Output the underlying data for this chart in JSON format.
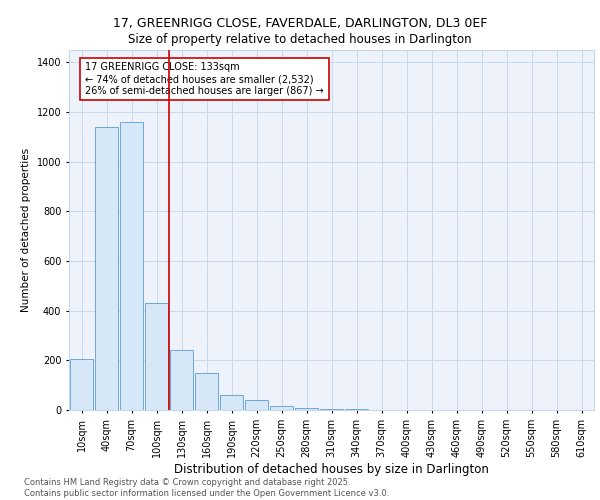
{
  "title_line1": "17, GREENRIGG CLOSE, FAVERDALE, DARLINGTON, DL3 0EF",
  "title_line2": "Size of property relative to detached houses in Darlington",
  "xlabel": "Distribution of detached houses by size in Darlington",
  "ylabel": "Number of detached properties",
  "bar_labels": [
    "10sqm",
    "40sqm",
    "70sqm",
    "100sqm",
    "130sqm",
    "160sqm",
    "190sqm",
    "220sqm",
    "250sqm",
    "280sqm",
    "310sqm",
    "340sqm",
    "370sqm",
    "400sqm",
    "430sqm",
    "460sqm",
    "490sqm",
    "520sqm",
    "550sqm",
    "580sqm",
    "610sqm"
  ],
  "bar_values": [
    205,
    1140,
    1160,
    430,
    240,
    150,
    60,
    40,
    15,
    10,
    5,
    5,
    0,
    0,
    0,
    2,
    0,
    0,
    0,
    0,
    0
  ],
  "bar_color": "#d6e8f7",
  "bar_edge_color": "#5b9bd5",
  "grid_color": "#c8d8ec",
  "background_color": "#eef2fa",
  "property_line_color": "#cc0000",
  "property_line_index": 3.5,
  "annotation_text": "17 GREENRIGG CLOSE: 133sqm\n← 74% of detached houses are smaller (2,532)\n26% of semi-detached houses are larger (867) →",
  "annotation_box_color": "#cc0000",
  "ylim": [
    0,
    1450
  ],
  "yticks": [
    0,
    200,
    400,
    600,
    800,
    1000,
    1200,
    1400
  ],
  "footer_text": "Contains HM Land Registry data © Crown copyright and database right 2025.\nContains public sector information licensed under the Open Government Licence v3.0.",
  "title_fontsize": 9,
  "subtitle_fontsize": 8.5,
  "xlabel_fontsize": 8.5,
  "ylabel_fontsize": 7.5,
  "tick_fontsize": 7,
  "annotation_fontsize": 7,
  "footer_fontsize": 6
}
